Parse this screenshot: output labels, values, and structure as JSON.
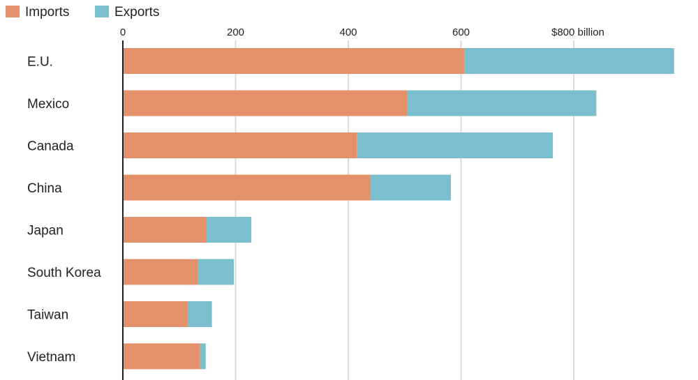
{
  "chart_data": {
    "type": "bar",
    "orientation": "horizontal",
    "stacked": true,
    "categories": [
      "E.U.",
      "Mexico",
      "Canada",
      "China",
      "Japan",
      "South Korea",
      "Taiwan",
      "Vietnam"
    ],
    "series": [
      {
        "name": "Imports",
        "color": "#e3916a",
        "values": [
          606,
          505,
          415,
          439,
          148,
          133,
          115,
          137
        ]
      },
      {
        "name": "Exports",
        "color": "#7bbfcf",
        "values": [
          372,
          335,
          348,
          143,
          80,
          64,
          43,
          10
        ]
      }
    ],
    "x_ticks": [
      0,
      200,
      400,
      600,
      800
    ],
    "x_tick_labels": [
      "0",
      "200",
      "400",
      "600",
      "$800 billion"
    ],
    "xlim": [
      0,
      980
    ],
    "title": "",
    "xlabel": "",
    "ylabel": "",
    "grid": true,
    "legend": "top-left"
  }
}
